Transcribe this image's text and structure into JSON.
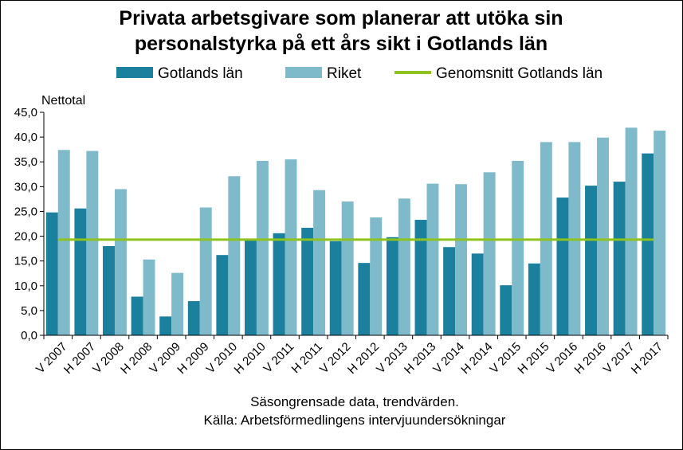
{
  "chart_data": {
    "type": "bar",
    "title_lines": [
      "Privata arbetsgivare som planerar att utöka sin",
      "personalstyrka på ett års sikt i Gotlands län"
    ],
    "ylabel": "Nettotal",
    "xlabel": "",
    "ylim": [
      0,
      45
    ],
    "ytick_step": 5,
    "ytick_labels": [
      "0,0",
      "5,0",
      "10,0",
      "15,0",
      "20,0",
      "25,0",
      "30,0",
      "35,0",
      "40,0",
      "45,0"
    ],
    "grid": false,
    "legend_position": "top",
    "categories": [
      "V 2007",
      "H 2007",
      "V 2008",
      "H 2008",
      "V 2009",
      "H 2009",
      "V 2010",
      "H 2010",
      "V 2011",
      "H 2011",
      "V 2012",
      "H 2012",
      "V 2013",
      "H 2013",
      "V 2014",
      "H 2014",
      "V 2015",
      "H 2015",
      "V 2016",
      "H 2016",
      "V 2017",
      "H 2017"
    ],
    "series": [
      {
        "name": "Gotlands län",
        "type": "bar",
        "color": "#1B7F9E",
        "values": [
          24.8,
          25.6,
          18.0,
          7.8,
          3.8,
          6.9,
          16.2,
          19.2,
          20.6,
          21.7,
          19.0,
          14.6,
          19.8,
          23.3,
          17.8,
          16.5,
          10.1,
          14.5,
          27.8,
          30.2,
          31.0,
          36.7
        ]
      },
      {
        "name": "Riket",
        "type": "bar",
        "color": "#7FBACB",
        "values": [
          37.4,
          37.2,
          29.5,
          15.3,
          12.6,
          25.8,
          32.1,
          35.2,
          35.5,
          29.3,
          27.0,
          23.8,
          27.6,
          30.6,
          30.5,
          32.9,
          35.2,
          39.0,
          39.0,
          39.9,
          41.9,
          41.3
        ]
      },
      {
        "name": "Genomsnitt Gotlands län",
        "type": "line",
        "color": "#8DC21F",
        "value": 19.3
      }
    ],
    "notes": [
      "Säsongrensade data, trendvärden.",
      "Källa: Arbetsförmedlingens  intervjuundersökningar"
    ]
  }
}
